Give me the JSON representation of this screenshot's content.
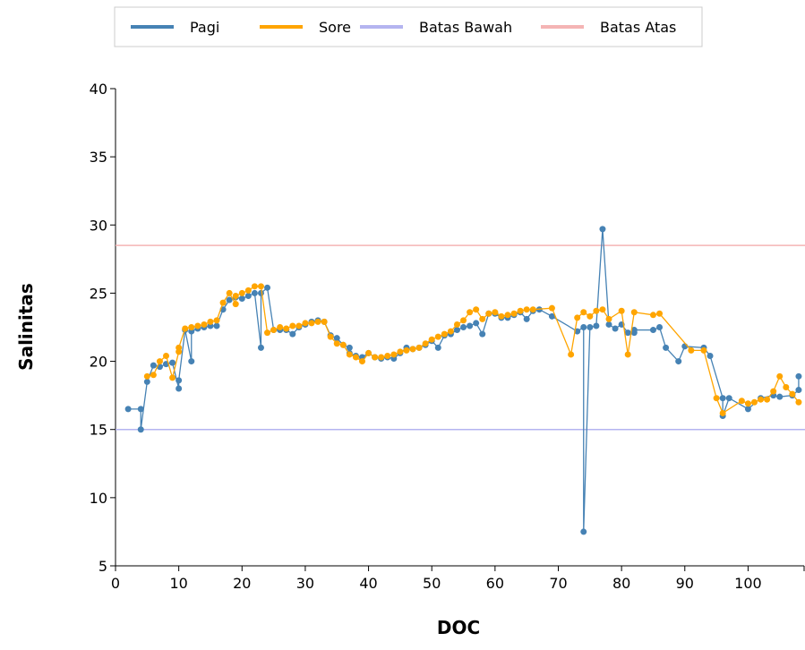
{
  "chart_data": {
    "type": "line",
    "x_label": "DOC",
    "y_label": "Salinitas",
    "xlim": [
      0,
      109
    ],
    "ylim": [
      5,
      40
    ],
    "xticks": [
      0,
      10,
      20,
      30,
      40,
      50,
      60,
      70,
      80,
      90,
      100
    ],
    "yticks": [
      5,
      10,
      15,
      20,
      25,
      30,
      35,
      40
    ],
    "series": [
      {
        "name": "Pagi",
        "color": "#4682b4",
        "markers": true,
        "x": [
          2,
          4,
          4,
          5,
          6,
          7,
          8,
          9,
          10,
          10,
          11,
          12,
          12,
          13,
          14,
          15,
          16,
          17,
          18,
          19,
          20,
          21,
          22,
          23,
          23,
          24,
          25,
          26,
          27,
          28,
          29,
          30,
          31,
          32,
          33,
          34,
          35,
          36,
          37,
          37,
          38,
          39,
          40,
          41,
          42,
          43,
          44,
          45,
          46,
          47,
          48,
          49,
          50,
          51,
          52,
          53,
          54,
          55,
          56,
          57,
          58,
          59,
          60,
          61,
          62,
          63,
          64,
          65,
          66,
          67,
          69,
          73,
          74,
          74,
          75,
          76,
          77,
          78,
          79,
          80,
          81,
          82,
          82,
          85,
          86,
          87,
          89,
          90,
          93,
          94,
          96,
          96,
          97,
          100,
          102,
          104,
          105,
          107,
          108,
          108
        ],
        "values": [
          16.5,
          16.5,
          15.0,
          18.5,
          19.7,
          19.6,
          19.8,
          19.9,
          18.0,
          18.6,
          22.3,
          20.0,
          22.2,
          22.4,
          22.5,
          22.6,
          22.6,
          23.8,
          24.5,
          24.7,
          24.6,
          24.8,
          25.0,
          21.0,
          25.0,
          25.4,
          22.3,
          22.3,
          22.3,
          22.0,
          22.5,
          22.7,
          22.9,
          23.0,
          22.9,
          21.9,
          21.7,
          21.2,
          21.0,
          20.6,
          20.4,
          20.3,
          20.6,
          20.3,
          20.2,
          20.3,
          20.2,
          20.6,
          21.0,
          20.9,
          21.0,
          21.2,
          21.5,
          21.0,
          21.9,
          22.0,
          22.3,
          22.5,
          22.6,
          22.8,
          22.0,
          23.5,
          23.5,
          23.2,
          23.2,
          23.4,
          23.6,
          23.1,
          23.7,
          23.8,
          23.3,
          22.2,
          22.5,
          7.5,
          22.5,
          22.6,
          29.7,
          22.7,
          22.4,
          22.7,
          22.1,
          22.1,
          22.3,
          22.3,
          22.5,
          21.0,
          20.0,
          21.1,
          21.0,
          20.4,
          17.3,
          16.0,
          17.3,
          16.5,
          17.3,
          17.5,
          17.4,
          17.5,
          17.9,
          18.9
        ]
      },
      {
        "name": "Sore",
        "color": "#ffa500",
        "markers": true,
        "x": [
          5,
          6,
          7,
          8,
          9,
          10,
          10,
          11,
          12,
          13,
          14,
          15,
          16,
          17,
          18,
          19,
          19,
          20,
          21,
          22,
          23,
          24,
          25,
          26,
          27,
          28,
          29,
          30,
          31,
          32,
          33,
          34,
          35,
          36,
          37,
          38,
          39,
          40,
          41,
          42,
          43,
          44,
          45,
          46,
          47,
          48,
          49,
          50,
          51,
          52,
          53,
          54,
          55,
          56,
          57,
          58,
          59,
          60,
          61,
          62,
          63,
          64,
          65,
          66,
          69,
          72,
          73,
          74,
          75,
          76,
          77,
          78,
          80,
          81,
          82,
          85,
          86,
          91,
          93,
          95,
          96,
          99,
          100,
          101,
          102,
          103,
          104,
          105,
          106,
          107,
          108
        ],
        "values": [
          18.9,
          19.0,
          20.0,
          20.4,
          18.8,
          20.7,
          21.0,
          22.4,
          22.5,
          22.6,
          22.7,
          22.9,
          23.0,
          24.3,
          25.0,
          24.2,
          24.8,
          25.0,
          25.2,
          25.5,
          25.5,
          22.1,
          22.3,
          22.5,
          22.4,
          22.6,
          22.6,
          22.8,
          22.8,
          22.9,
          22.9,
          21.8,
          21.3,
          21.2,
          20.5,
          20.3,
          20.0,
          20.6,
          20.3,
          20.3,
          20.4,
          20.5,
          20.7,
          20.8,
          20.9,
          21.0,
          21.3,
          21.6,
          21.8,
          22.0,
          22.2,
          22.7,
          23.0,
          23.6,
          23.8,
          23.1,
          23.5,
          23.6,
          23.3,
          23.4,
          23.5,
          23.7,
          23.8,
          23.8,
          23.9,
          20.5,
          23.2,
          23.6,
          23.3,
          23.7,
          23.8,
          23.1,
          23.7,
          20.5,
          23.6,
          23.4,
          23.5,
          20.8,
          20.8,
          17.3,
          16.2,
          17.1,
          16.9,
          17.0,
          17.2,
          17.2,
          17.8,
          18.9,
          18.1,
          17.6,
          17.0
        ]
      },
      {
        "name": "Batas Bawah",
        "color": "#b4b4f0",
        "markers": false,
        "x": [
          0,
          109
        ],
        "values": [
          15,
          15
        ]
      },
      {
        "name": "Batas Atas",
        "color": "#f4b4b4",
        "markers": false,
        "x": [
          0,
          109
        ],
        "values": [
          28.5,
          28.5
        ]
      }
    ]
  }
}
